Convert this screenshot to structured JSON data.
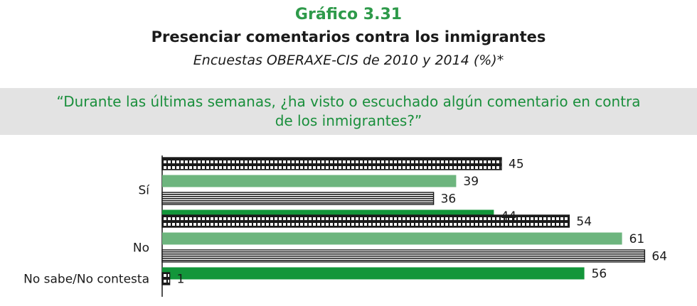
{
  "header": {
    "figure_label": "Gráfico 3.31",
    "title": "Presenciar comentarios contra los inmigrantes",
    "subtitle": "Encuestas OBERAXE-CIS de 2010 y 2014 (%)*"
  },
  "question": {
    "line1": "“Durante las últimas semanas, ¿ha visto o escuchado algún comentario en contra",
    "line2": "de los inmigrantes?”"
  },
  "chart_data": {
    "type": "bar",
    "orientation": "horizontal",
    "title": "Presenciar comentarios contra los inmigrantes",
    "subtitle": "Encuestas OBERAXE-CIS de 2010 y 2014 (%)*",
    "categories": [
      "Sí",
      "No",
      "No sabe/No contesta"
    ],
    "series": [
      {
        "values": [
          45,
          54,
          1
        ],
        "pattern": "checker",
        "color": "#1a1a1a"
      },
      {
        "values": [
          39,
          61,
          null
        ],
        "color": "#6db57e"
      },
      {
        "values": [
          36,
          64,
          null
        ],
        "pattern": "stripes",
        "color": "#1a1a1a"
      },
      {
        "values": [
          44,
          56,
          null
        ],
        "color": "#13963a"
      }
    ],
    "xlim": [
      0,
      70
    ],
    "grid": false,
    "legend": "none"
  }
}
